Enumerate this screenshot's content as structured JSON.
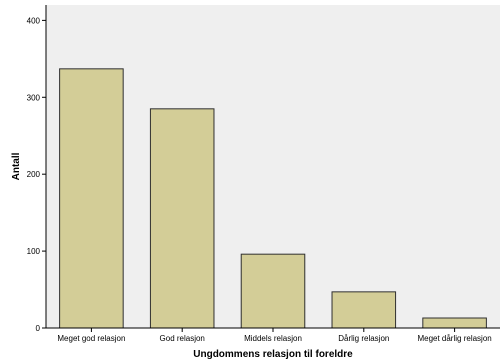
{
  "chart_data": {
    "type": "bar",
    "categories": [
      "Meget god relasjon",
      "God relasjon",
      "Middels relasjon",
      "Dårlig relasjon",
      "Meget dårlig relasjon"
    ],
    "values": [
      337,
      285,
      96,
      47,
      13
    ],
    "title": "",
    "xlabel": "Ungdommens relasjon til foreldre",
    "ylabel": "Antall",
    "ylim": [
      0,
      420
    ],
    "yticks": [
      0,
      100,
      200,
      300,
      400
    ],
    "ytick_labels": [
      "0",
      "100",
      "200",
      "300",
      "400"
    ],
    "grid": false,
    "legend": "none",
    "colors": {
      "plot_background": "#efefef",
      "bar_fill": "#d3cd97",
      "bar_stroke": "#2f2f2f",
      "axis": "#000000"
    }
  }
}
